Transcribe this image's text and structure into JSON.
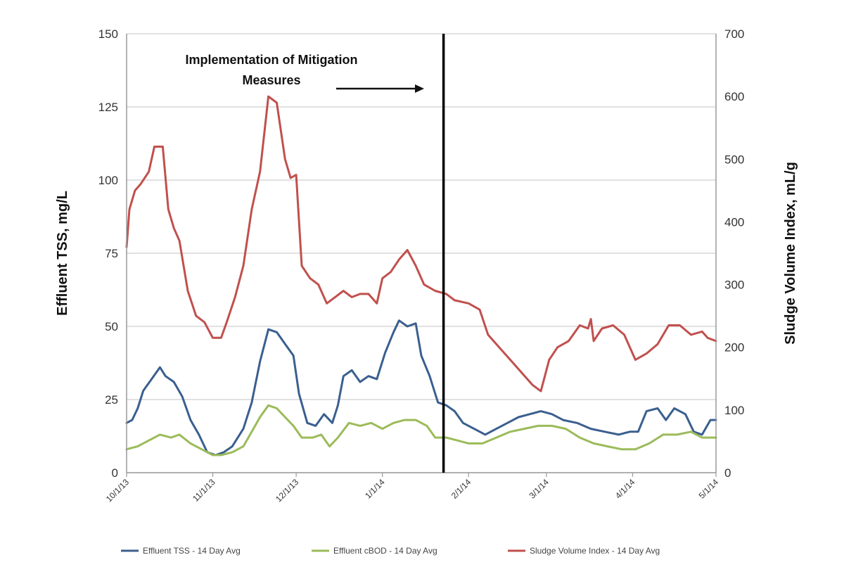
{
  "chart_data": {
    "type": "line",
    "ylabel": "Effluent TSS, mg/L",
    "y2label": "Sludge Volume Index, mL/g",
    "ylim": [
      0,
      150
    ],
    "y2lim": [
      0,
      700
    ],
    "yticks": [
      "0",
      "25",
      "50",
      "75",
      "100",
      "125",
      "150"
    ],
    "y2ticks": [
      "0",
      "100",
      "200",
      "300",
      "400",
      "500",
      "600",
      "700"
    ],
    "xlim": [
      "2013-10-01",
      "2014-05-01"
    ],
    "xticks": [
      {
        "date": "2013-10-01",
        "label": "10/1/13"
      },
      {
        "date": "2013-11-01",
        "label": "11/1/13"
      },
      {
        "date": "2013-12-01",
        "label": "12/1/13"
      },
      {
        "date": "2014-01-01",
        "label": "1/1/14"
      },
      {
        "date": "2014-02-01",
        "label": "2/1/14"
      },
      {
        "date": "2014-03-01",
        "label": "3/1/14"
      },
      {
        "date": "2014-04-01",
        "label": "4/1/14"
      },
      {
        "date": "2014-05-01",
        "label": "5/1/14"
      }
    ],
    "grid": true,
    "legend_position": "bottom",
    "annotation": {
      "lines": [
        "Implementation of Mitigation",
        "Measures"
      ],
      "marker_date": "2014-01-23"
    },
    "series": [
      {
        "name": "Effluent TSS - 14 Day Avg",
        "axis": "left",
        "color": "#3a5f8f",
        "points": [
          [
            "2013-10-01",
            17
          ],
          [
            "2013-10-03",
            18
          ],
          [
            "2013-10-05",
            22
          ],
          [
            "2013-10-07",
            28
          ],
          [
            "2013-10-10",
            32
          ],
          [
            "2013-10-13",
            36
          ],
          [
            "2013-10-15",
            33
          ],
          [
            "2013-10-18",
            31
          ],
          [
            "2013-10-21",
            26
          ],
          [
            "2013-10-24",
            18
          ],
          [
            "2013-10-27",
            13
          ],
          [
            "2013-10-30",
            7
          ],
          [
            "2013-11-02",
            6
          ],
          [
            "2013-11-05",
            7
          ],
          [
            "2013-11-08",
            9
          ],
          [
            "2013-11-12",
            15
          ],
          [
            "2013-11-15",
            24
          ],
          [
            "2013-11-18",
            38
          ],
          [
            "2013-11-21",
            49
          ],
          [
            "2013-11-24",
            48
          ],
          [
            "2013-11-27",
            44
          ],
          [
            "2013-11-30",
            40
          ],
          [
            "2013-12-02",
            27
          ],
          [
            "2013-12-05",
            17
          ],
          [
            "2013-12-08",
            16
          ],
          [
            "2013-12-11",
            20
          ],
          [
            "2013-12-14",
            17
          ],
          [
            "2013-12-16",
            23
          ],
          [
            "2013-12-18",
            33
          ],
          [
            "2013-12-21",
            35
          ],
          [
            "2013-12-24",
            31
          ],
          [
            "2013-12-27",
            33
          ],
          [
            "2013-12-30",
            32
          ],
          [
            "2014-01-02",
            41
          ],
          [
            "2014-01-05",
            48
          ],
          [
            "2014-01-07",
            52
          ],
          [
            "2014-01-10",
            50
          ],
          [
            "2014-01-13",
            51
          ],
          [
            "2014-01-15",
            40
          ],
          [
            "2014-01-18",
            33
          ],
          [
            "2014-01-21",
            24
          ],
          [
            "2014-01-24",
            23
          ],
          [
            "2014-01-27",
            21
          ],
          [
            "2014-01-30",
            17
          ],
          [
            "2014-02-03",
            15
          ],
          [
            "2014-02-07",
            13
          ],
          [
            "2014-02-11",
            15
          ],
          [
            "2014-02-15",
            17
          ],
          [
            "2014-02-19",
            19
          ],
          [
            "2014-02-23",
            20
          ],
          [
            "2014-02-27",
            21
          ],
          [
            "2014-03-03",
            20
          ],
          [
            "2014-03-07",
            18
          ],
          [
            "2014-03-12",
            17
          ],
          [
            "2014-03-17",
            15
          ],
          [
            "2014-03-22",
            14
          ],
          [
            "2014-03-27",
            13
          ],
          [
            "2014-03-31",
            14
          ],
          [
            "2014-04-03",
            14
          ],
          [
            "2014-04-06",
            21
          ],
          [
            "2014-04-10",
            22
          ],
          [
            "2014-04-13",
            18
          ],
          [
            "2014-04-16",
            22
          ],
          [
            "2014-04-20",
            20
          ],
          [
            "2014-04-23",
            14
          ],
          [
            "2014-04-26",
            13
          ],
          [
            "2014-04-29",
            18
          ],
          [
            "2014-05-01",
            18
          ]
        ]
      },
      {
        "name": "Effluent cBOD - 14 Day Avg",
        "axis": "left",
        "color": "#9bbb59",
        "points": [
          [
            "2013-10-01",
            8
          ],
          [
            "2013-10-05",
            9
          ],
          [
            "2013-10-09",
            11
          ],
          [
            "2013-10-13",
            13
          ],
          [
            "2013-10-17",
            12
          ],
          [
            "2013-10-20",
            13
          ],
          [
            "2013-10-24",
            10
          ],
          [
            "2013-10-28",
            8
          ],
          [
            "2013-11-01",
            6
          ],
          [
            "2013-11-04",
            6
          ],
          [
            "2013-11-08",
            7
          ],
          [
            "2013-11-12",
            9
          ],
          [
            "2013-11-15",
            14
          ],
          [
            "2013-11-18",
            19
          ],
          [
            "2013-11-21",
            23
          ],
          [
            "2013-11-24",
            22
          ],
          [
            "2013-11-27",
            19
          ],
          [
            "2013-11-30",
            16
          ],
          [
            "2013-12-03",
            12
          ],
          [
            "2013-12-07",
            12
          ],
          [
            "2013-12-10",
            13
          ],
          [
            "2013-12-13",
            9
          ],
          [
            "2013-12-16",
            12
          ],
          [
            "2013-12-20",
            17
          ],
          [
            "2013-12-24",
            16
          ],
          [
            "2013-12-28",
            17
          ],
          [
            "2014-01-01",
            15
          ],
          [
            "2014-01-05",
            17
          ],
          [
            "2014-01-09",
            18
          ],
          [
            "2014-01-13",
            18
          ],
          [
            "2014-01-17",
            16
          ],
          [
            "2014-01-20",
            12
          ],
          [
            "2014-01-24",
            12
          ],
          [
            "2014-01-28",
            11
          ],
          [
            "2014-02-01",
            10
          ],
          [
            "2014-02-06",
            10
          ],
          [
            "2014-02-11",
            12
          ],
          [
            "2014-02-16",
            14
          ],
          [
            "2014-02-21",
            15
          ],
          [
            "2014-02-26",
            16
          ],
          [
            "2014-03-03",
            16
          ],
          [
            "2014-03-08",
            15
          ],
          [
            "2014-03-13",
            12
          ],
          [
            "2014-03-18",
            10
          ],
          [
            "2014-03-23",
            9
          ],
          [
            "2014-03-28",
            8
          ],
          [
            "2014-04-02",
            8
          ],
          [
            "2014-04-07",
            10
          ],
          [
            "2014-04-12",
            13
          ],
          [
            "2014-04-17",
            13
          ],
          [
            "2014-04-22",
            14
          ],
          [
            "2014-04-26",
            12
          ],
          [
            "2014-05-01",
            12
          ]
        ]
      },
      {
        "name": "Sludge Volume Index - 14 Day Avg",
        "axis": "right",
        "color": "#c0504d",
        "points": [
          [
            "2013-10-01",
            360
          ],
          [
            "2013-10-02",
            420
          ],
          [
            "2013-10-04",
            450
          ],
          [
            "2013-10-06",
            460
          ],
          [
            "2013-10-09",
            480
          ],
          [
            "2013-10-11",
            520
          ],
          [
            "2013-10-14",
            520
          ],
          [
            "2013-10-16",
            420
          ],
          [
            "2013-10-18",
            390
          ],
          [
            "2013-10-20",
            370
          ],
          [
            "2013-10-23",
            290
          ],
          [
            "2013-10-26",
            250
          ],
          [
            "2013-10-29",
            240
          ],
          [
            "2013-11-01",
            215
          ],
          [
            "2013-11-04",
            215
          ],
          [
            "2013-11-06",
            240
          ],
          [
            "2013-11-09",
            280
          ],
          [
            "2013-11-12",
            330
          ],
          [
            "2013-11-15",
            420
          ],
          [
            "2013-11-18",
            480
          ],
          [
            "2013-11-21",
            600
          ],
          [
            "2013-11-24",
            590
          ],
          [
            "2013-11-27",
            500
          ],
          [
            "2013-11-29",
            470
          ],
          [
            "2013-12-01",
            475
          ],
          [
            "2013-12-03",
            330
          ],
          [
            "2013-12-06",
            310
          ],
          [
            "2013-12-09",
            300
          ],
          [
            "2013-12-12",
            270
          ],
          [
            "2013-12-15",
            280
          ],
          [
            "2013-12-18",
            290
          ],
          [
            "2013-12-21",
            280
          ],
          [
            "2013-12-24",
            285
          ],
          [
            "2013-12-27",
            285
          ],
          [
            "2013-12-30",
            270
          ],
          [
            "2014-01-01",
            310
          ],
          [
            "2014-01-04",
            320
          ],
          [
            "2014-01-07",
            340
          ],
          [
            "2014-01-10",
            355
          ],
          [
            "2014-01-13",
            330
          ],
          [
            "2014-01-16",
            300
          ],
          [
            "2014-01-20",
            290
          ],
          [
            "2014-01-24",
            285
          ],
          [
            "2014-01-27",
            275
          ],
          [
            "2014-02-01",
            270
          ],
          [
            "2014-02-05",
            260
          ],
          [
            "2014-02-08",
            220
          ],
          [
            "2014-02-12",
            200
          ],
          [
            "2014-02-16",
            180
          ],
          [
            "2014-02-20",
            160
          ],
          [
            "2014-02-24",
            140
          ],
          [
            "2014-02-27",
            130
          ],
          [
            "2014-03-02",
            180
          ],
          [
            "2014-03-05",
            200
          ],
          [
            "2014-03-09",
            210
          ],
          [
            "2014-03-13",
            235
          ],
          [
            "2014-03-16",
            230
          ],
          [
            "2014-03-17",
            245
          ],
          [
            "2014-03-18",
            210
          ],
          [
            "2014-03-21",
            230
          ],
          [
            "2014-03-25",
            235
          ],
          [
            "2014-03-29",
            220
          ],
          [
            "2014-04-02",
            180
          ],
          [
            "2014-04-06",
            190
          ],
          [
            "2014-04-10",
            205
          ],
          [
            "2014-04-14",
            235
          ],
          [
            "2014-04-18",
            235
          ],
          [
            "2014-04-22",
            220
          ],
          [
            "2014-04-26",
            225
          ],
          [
            "2014-04-28",
            215
          ],
          [
            "2014-05-01",
            210
          ]
        ]
      }
    ]
  }
}
